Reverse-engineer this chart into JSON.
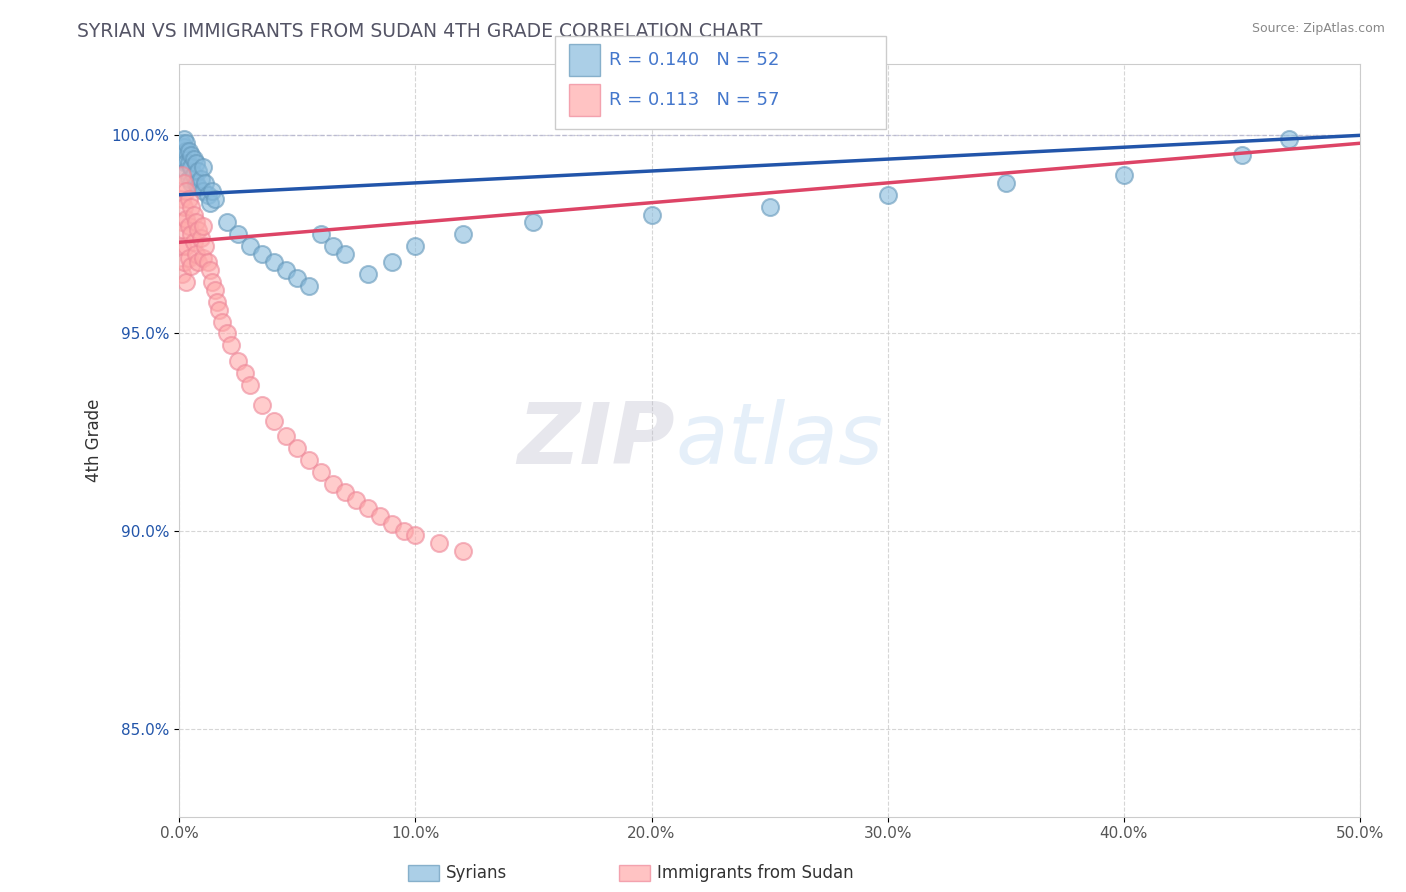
{
  "title": "SYRIAN VS IMMIGRANTS FROM SUDAN 4TH GRADE CORRELATION CHART",
  "source_text": "Source: ZipAtlas.com",
  "ylabel_text": "4th Grade",
  "xmin": 0.0,
  "xmax": 0.5,
  "ymin": 0.828,
  "ymax": 1.018,
  "yticks": [
    0.85,
    0.9,
    0.95,
    1.0
  ],
  "ytick_labels": [
    "85.0%",
    "90.0%",
    "95.0%",
    "100.0%"
  ],
  "xticks": [
    0.0,
    0.1,
    0.2,
    0.3,
    0.4,
    0.5
  ],
  "xtick_labels": [
    "0.0%",
    "10.0%",
    "20.0%",
    "30.0%",
    "40.0%",
    "50.0%"
  ],
  "blue_R": 0.14,
  "blue_N": 52,
  "pink_R": 0.113,
  "pink_N": 57,
  "blue_color": "#88BBDD",
  "pink_color": "#FFAAAA",
  "blue_edge_color": "#6699BB",
  "pink_edge_color": "#EE8899",
  "blue_line_color": "#2255AA",
  "pink_line_color": "#DD4466",
  "background_color": "#FFFFFF",
  "grid_color": "#CCCCCC",
  "watermark_zip": "ZIP",
  "watermark_atlas": "atlas",
  "legend_text_color": "#4477CC",
  "syrians_label": "Syrians",
  "sudan_label": "Immigrants from Sudan",
  "blue_x": [
    0.001,
    0.001,
    0.002,
    0.002,
    0.002,
    0.003,
    0.003,
    0.003,
    0.003,
    0.004,
    0.004,
    0.004,
    0.005,
    0.005,
    0.005,
    0.006,
    0.006,
    0.007,
    0.007,
    0.008,
    0.008,
    0.009,
    0.01,
    0.01,
    0.011,
    0.012,
    0.013,
    0.014,
    0.015,
    0.02,
    0.025,
    0.03,
    0.035,
    0.04,
    0.045,
    0.05,
    0.055,
    0.06,
    0.065,
    0.07,
    0.08,
    0.09,
    0.1,
    0.12,
    0.15,
    0.2,
    0.25,
    0.3,
    0.35,
    0.4,
    0.45,
    0.47
  ],
  "blue_y": [
    0.998,
    0.995,
    0.997,
    0.994,
    0.999,
    0.996,
    0.993,
    0.998,
    0.991,
    0.996,
    0.993,
    0.989,
    0.995,
    0.992,
    0.988,
    0.994,
    0.99,
    0.993,
    0.988,
    0.991,
    0.987,
    0.989,
    0.992,
    0.986,
    0.988,
    0.985,
    0.983,
    0.986,
    0.984,
    0.978,
    0.975,
    0.972,
    0.97,
    0.968,
    0.966,
    0.964,
    0.962,
    0.975,
    0.972,
    0.97,
    0.965,
    0.968,
    0.972,
    0.975,
    0.978,
    0.98,
    0.982,
    0.985,
    0.988,
    0.99,
    0.995,
    0.999
  ],
  "pink_x": [
    0.001,
    0.001,
    0.001,
    0.001,
    0.001,
    0.002,
    0.002,
    0.002,
    0.002,
    0.003,
    0.003,
    0.003,
    0.003,
    0.004,
    0.004,
    0.004,
    0.005,
    0.005,
    0.005,
    0.006,
    0.006,
    0.007,
    0.007,
    0.008,
    0.008,
    0.009,
    0.01,
    0.01,
    0.011,
    0.012,
    0.013,
    0.014,
    0.015,
    0.016,
    0.017,
    0.018,
    0.02,
    0.022,
    0.025,
    0.028,
    0.03,
    0.035,
    0.04,
    0.045,
    0.05,
    0.055,
    0.06,
    0.065,
    0.07,
    0.075,
    0.08,
    0.085,
    0.09,
    0.095,
    0.1,
    0.11,
    0.12
  ],
  "pink_y": [
    0.99,
    0.984,
    0.978,
    0.972,
    0.965,
    0.988,
    0.982,
    0.976,
    0.968,
    0.986,
    0.979,
    0.972,
    0.963,
    0.984,
    0.977,
    0.969,
    0.982,
    0.975,
    0.967,
    0.98,
    0.973,
    0.978,
    0.97,
    0.976,
    0.968,
    0.974,
    0.977,
    0.969,
    0.972,
    0.968,
    0.966,
    0.963,
    0.961,
    0.958,
    0.956,
    0.953,
    0.95,
    0.947,
    0.943,
    0.94,
    0.937,
    0.932,
    0.928,
    0.924,
    0.921,
    0.918,
    0.915,
    0.912,
    0.91,
    0.908,
    0.906,
    0.904,
    0.902,
    0.9,
    0.899,
    0.897,
    0.895
  ]
}
